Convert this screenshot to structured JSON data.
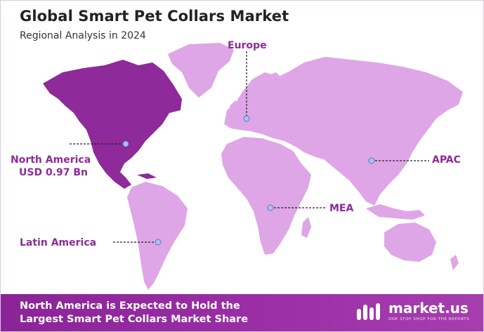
{
  "title": "Global Smart Pet Collars Market",
  "subtitle": "Regional Analysis in 2024",
  "regions": [
    {
      "id": "europe",
      "label": "Europe",
      "value": ""
    },
    {
      "id": "north-america",
      "label": "North America",
      "value": "USD 0.97 Bn"
    },
    {
      "id": "apac",
      "label": "APAC",
      "value": ""
    },
    {
      "id": "mea",
      "label": "MEA",
      "value": ""
    },
    {
      "id": "latin-america",
      "label": "Latin America",
      "value": ""
    }
  ],
  "footer": {
    "line1": "North America is Expected to Hold the",
    "line2": "Largest Smart Pet Collars Market Share"
  },
  "brand": {
    "name": "market.us",
    "tagline": "ONE STOP SHOP FOR THE REPORTS"
  },
  "colors": {
    "highlight_region": "#8e2a9a",
    "other_regions": "#dea6e6",
    "label": "#8e2a9a",
    "footer": "#8a2497"
  }
}
